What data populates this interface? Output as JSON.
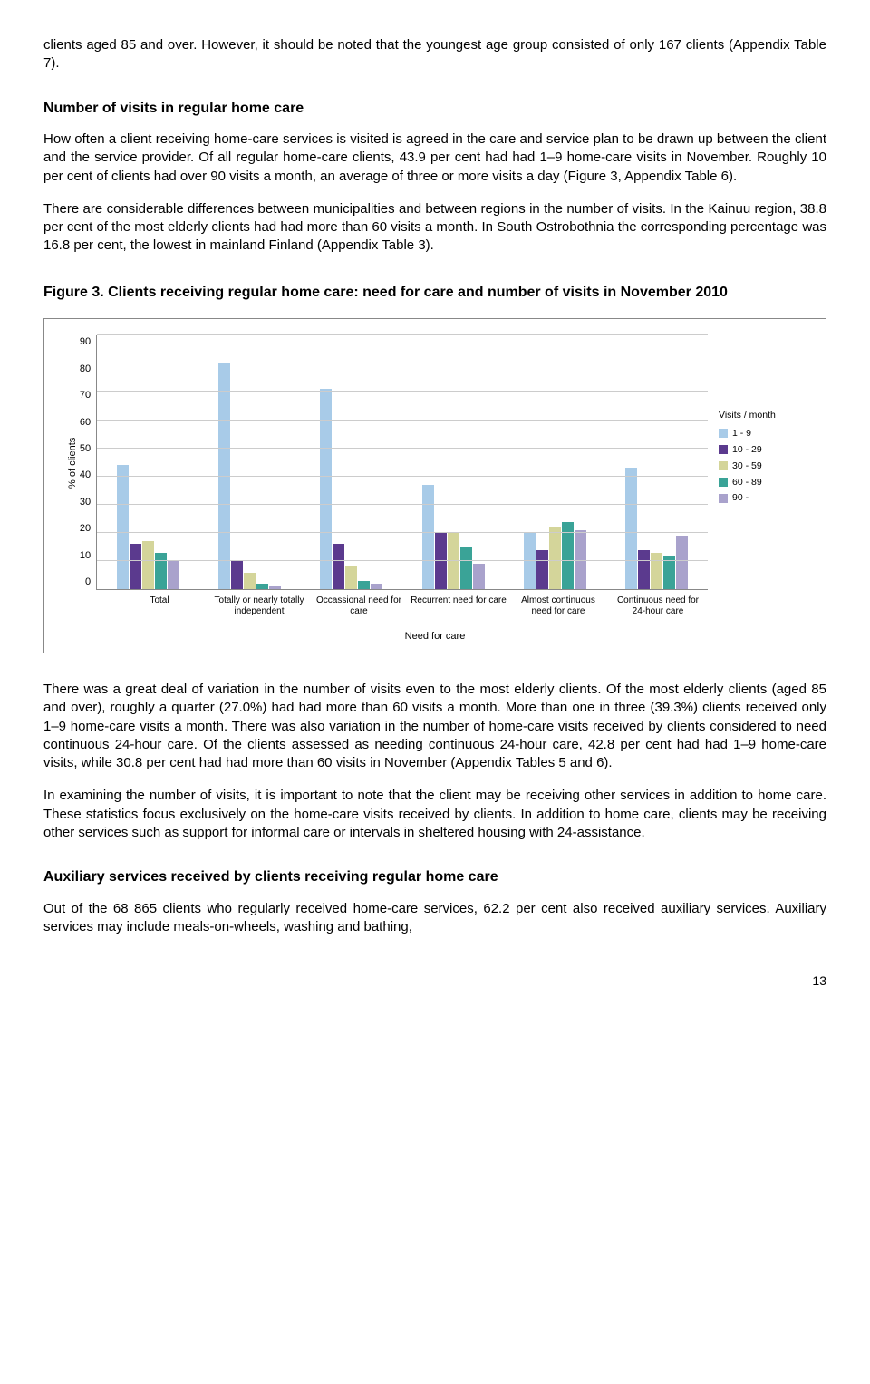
{
  "para1": "clients aged 85 and over. However, it should be noted that the youngest age group consisted of only 167 clients (Appendix Table 7).",
  "section1_title": "Number of visits in regular home care",
  "para2": "How often a client receiving home-care services is visited is agreed in the care and service plan to be drawn up between the client and the service provider. Of all regular home-care clients, 43.9 per cent had had 1–9 home-care visits in November. Roughly 10 per cent of clients had over 90 visits a month, an average of three or more visits a day (Figure 3, Appendix Table 6).",
  "para3": "There are considerable differences between municipalities and between regions in the number of visits. In the Kainuu region, 38.8 per cent of the most elderly clients had had more than 60 visits a month. In South Ostrobothnia the corresponding percentage was 16.8 per cent, the lowest in mainland Finland (Appendix Table 3).",
  "fig_title": "Figure 3. Clients receiving regular home care: need for care and number of visits in November 2010",
  "chart": {
    "type": "bar",
    "ylabel": "% of clients",
    "xlabel": "Need for care",
    "legend_title": "Visits / month",
    "ylim": [
      0,
      90
    ],
    "ytick_step": 10,
    "yticks": [
      "90",
      "80",
      "70",
      "60",
      "50",
      "40",
      "30",
      "20",
      "10",
      "0"
    ],
    "background_color": "#ffffff",
    "grid_color": "#cccccc",
    "categories": [
      "Total",
      "Totally or nearly totally independent",
      "Occassional need for care",
      "Recurrent need for care",
      "Almost continuous need for care",
      "Continuous need for 24-hour care"
    ],
    "series": [
      {
        "label": "1 - 9",
        "color": "#a8cbe8"
      },
      {
        "label": "10 - 29",
        "color": "#5b3a8e"
      },
      {
        "label": "30 - 59",
        "color": "#d4d59a"
      },
      {
        "label": "60 - 89",
        "color": "#3aa397"
      },
      {
        "label": "90 -",
        "color": "#a9a2cc"
      }
    ],
    "data": [
      [
        44,
        16,
        17,
        13,
        10
      ],
      [
        80,
        10,
        6,
        2,
        1
      ],
      [
        71,
        16,
        8,
        3,
        2
      ],
      [
        37,
        20,
        20,
        15,
        9
      ],
      [
        20,
        14,
        22,
        24,
        21
      ],
      [
        43,
        14,
        13,
        12,
        19
      ]
    ]
  },
  "para4": "There was a great deal of variation in the number of visits even to the most elderly clients. Of the most elderly clients (aged 85 and over), roughly a quarter (27.0%) had had more than 60 visits a month. More than one in three (39.3%) clients received only 1–9 home-care visits a month. There was also variation in the number of home-care visits received by clients considered to need continuous 24-hour care. Of the clients assessed as needing continuous 24-hour care, 42.8 per cent had had 1–9 home-care visits, while 30.8 per cent had had more than 60 visits in November (Appendix Tables 5 and 6).",
  "para5": "In examining the number of visits, it is important to note that the client may be receiving other services in addition to home care. These statistics focus exclusively on the home-care visits received by clients. In addition to home care, clients may be receiving other services such as support for informal care or intervals in sheltered housing with 24-assistance.",
  "section2_title": "Auxiliary services received by clients receiving regular home care",
  "para6": "Out of the 68 865 clients who regularly received home-care services, 62.2 per cent also received auxiliary services. Auxiliary services may include meals-on-wheels, washing and bathing,",
  "page_number": "13"
}
